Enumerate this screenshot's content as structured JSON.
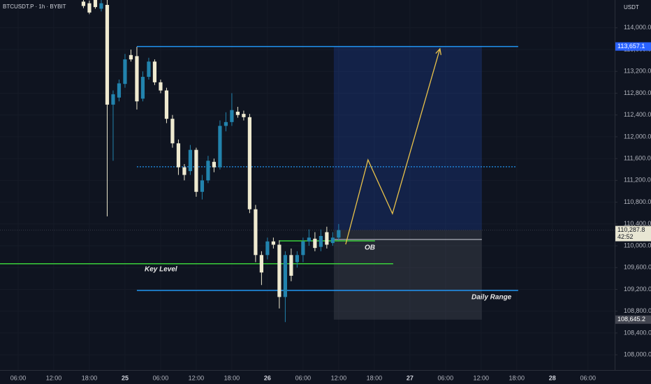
{
  "chart_data": {
    "type": "candlestick",
    "title": "BTCUSDT.P · 1h · BYBIT",
    "currency": "USDT",
    "up_color": "#2283ad",
    "down_color": "#efead0",
    "x": [
      17,
      18,
      19,
      20,
      21,
      22,
      23,
      24,
      25,
      26,
      27,
      28,
      29,
      30,
      31,
      32,
      33,
      34,
      35,
      36,
      37,
      38,
      39,
      40,
      41,
      42,
      43,
      44,
      45,
      46,
      47,
      48,
      49,
      50,
      51,
      52,
      53,
      54,
      55,
      56,
      57,
      58,
      59,
      60
    ],
    "open": [
      114480,
      114450,
      114520,
      114350,
      114420,
      112590,
      112720,
      112970,
      113500,
      113480,
      112700,
      113100,
      113380,
      113000,
      112850,
      112330,
      111880,
      111440,
      111370,
      111760,
      110990,
      111200,
      111540,
      111440,
      112200,
      112270,
      112460,
      112420,
      112360,
      110670,
      109830,
      109830,
      110080,
      110020,
      109060,
      109830,
      109700,
      109830,
      110080,
      110130,
      109980,
      110250,
      110050,
      110150
    ],
    "high": [
      114520,
      114500,
      114530,
      114520,
      114520,
      112850,
      113050,
      113520,
      113600,
      113650,
      113200,
      113450,
      113420,
      113050,
      112900,
      112400,
      111950,
      111500,
      111850,
      111800,
      111300,
      111650,
      111600,
      112300,
      112450,
      112800,
      112550,
      112480,
      112420,
      110750,
      109900,
      110150,
      110150,
      110100,
      109900,
      109950,
      109900,
      110150,
      110300,
      110250,
      110300,
      110350,
      110250,
      110400
    ],
    "low": [
      114360,
      114250,
      114350,
      114300,
      110540,
      111560,
      112650,
      112900,
      113380,
      112500,
      112650,
      113050,
      112950,
      112800,
      112250,
      111800,
      111300,
      111200,
      111300,
      110900,
      110850,
      111150,
      111350,
      111400,
      112100,
      112200,
      112350,
      112300,
      110600,
      109700,
      109280,
      109750,
      109950,
      108850,
      108600,
      109350,
      109600,
      109700,
      110000,
      109900,
      109900,
      109950,
      110000,
      110100
    ],
    "close": [
      114400,
      114280,
      114380,
      114450,
      112590,
      112780,
      112980,
      113420,
      113420,
      112650,
      113100,
      113380,
      113000,
      112850,
      112330,
      111880,
      111440,
      111300,
      111760,
      110990,
      111200,
      111560,
      111440,
      112200,
      112270,
      112490,
      112400,
      112360,
      110670,
      109830,
      109510,
      110080,
      110020,
      109060,
      109830,
      109450,
      109830,
      110080,
      110150,
      109960,
      110180,
      110020,
      110150,
      110287.8
    ],
    "xlim": [
      2.94,
      106.5
    ],
    "ylim": [
      107720,
      114510
    ],
    "xticks": [
      {
        "value": 6,
        "label": "06:00"
      },
      {
        "value": 12,
        "label": "12:00"
      },
      {
        "value": 18,
        "label": "18:00"
      },
      {
        "value": 24,
        "label": "25"
      },
      {
        "value": 30,
        "label": "06:00"
      },
      {
        "value": 36,
        "label": "12:00"
      },
      {
        "value": 42,
        "label": "18:00"
      },
      {
        "value": 48,
        "label": "26"
      },
      {
        "value": 54,
        "label": "06:00"
      },
      {
        "value": 60,
        "label": "12:00"
      },
      {
        "value": 66,
        "label": "18:00"
      },
      {
        "value": 72,
        "label": "27"
      },
      {
        "value": 78,
        "label": "06:00"
      },
      {
        "value": 84,
        "label": "12:00"
      },
      {
        "value": 90,
        "label": "18:00"
      },
      {
        "value": 96,
        "label": "28"
      },
      {
        "value": 102,
        "label": "06:00"
      }
    ],
    "yticks": [
      {
        "value": 108000,
        "label": "108,000.0"
      },
      {
        "value": 108400,
        "label": "108,400.0"
      },
      {
        "value": 108800,
        "label": "108,800.0"
      },
      {
        "value": 109200,
        "label": "109,200.0"
      },
      {
        "value": 109600,
        "label": "109,600.0"
      },
      {
        "value": 110000,
        "label": "110,000.0"
      },
      {
        "value": 110400,
        "label": "110,400.0"
      },
      {
        "value": 110800,
        "label": "110,800.0"
      },
      {
        "value": 111200,
        "label": "111,200.0"
      },
      {
        "value": 111600,
        "label": "111,600.0"
      },
      {
        "value": 112000,
        "label": "112,000.0"
      },
      {
        "value": 112400,
        "label": "112,400.0"
      },
      {
        "value": 112800,
        "label": "112,800.0"
      },
      {
        "value": 113200,
        "label": "113,200.0"
      },
      {
        "value": 113600,
        "label": "113,600.0"
      },
      {
        "value": 114000,
        "label": "114,000.0"
      }
    ],
    "levels": [
      {
        "price": 113657.1,
        "label": "113,657.1",
        "from": 26,
        "to": 90.24,
        "color": "#2196f3",
        "style": "solid"
      },
      {
        "price": 111450,
        "from": 26,
        "to": 90,
        "color": "#2196f3",
        "style": "dotted"
      },
      {
        "price": 109670,
        "to": 69.18,
        "color": "#3ad13a",
        "style": "solid",
        "text": "Key Level"
      },
      {
        "price": 110090,
        "from": 50,
        "to": 66.12,
        "color": "#3ad13a",
        "style": "solid",
        "text": "OB"
      },
      {
        "price": 109180,
        "from": 26,
        "to": 90.24,
        "color": "#2196f3",
        "style": "solid",
        "text": "Daily Range"
      }
    ],
    "zone": {
      "from": 59.18,
      "to": 84.12,
      "target": 113657.1,
      "entry": 110287.8,
      "stop": 108645.2,
      "stop_label": "108,645.2",
      "mid": 110115
    },
    "current": {
      "value": 110287.8,
      "label": "110,287.8",
      "countdown": "42:52"
    },
    "projection": {
      "x": [
        61.18,
        64.94,
        69.06,
        77.06
      ],
      "y": [
        110026,
        111577,
        110590,
        113615
      ],
      "color": "#e9c24a"
    }
  }
}
